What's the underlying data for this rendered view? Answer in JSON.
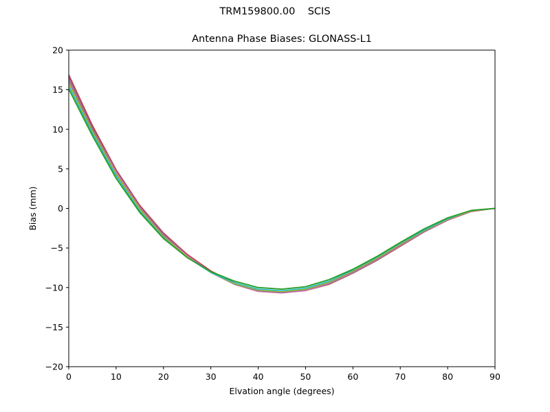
{
  "figure": {
    "suptitle": "TRM159800.00    SCIS",
    "title": "Antenna Phase Biases: GLONASS-L1"
  },
  "chart_data": {
    "type": "line",
    "title": "Antenna Phase Biases: GLONASS-L1",
    "suptitle": "TRM159800.00    SCIS",
    "xlabel": "Elvation angle (degrees)",
    "ylabel": "Bias (mm)",
    "xlim": [
      0,
      90
    ],
    "ylim": [
      -20,
      20
    ],
    "xticks": [
      0,
      10,
      20,
      30,
      40,
      50,
      60,
      70,
      80,
      90
    ],
    "yticks": [
      -20,
      -15,
      -10,
      -5,
      0,
      5,
      10,
      15,
      20
    ],
    "ytick_labels": [
      "−20",
      "−15",
      "−10",
      "−5",
      "0",
      "5",
      "10",
      "15",
      "20"
    ],
    "grid": false,
    "legend": null,
    "x": [
      0,
      5,
      10,
      15,
      20,
      25,
      30,
      35,
      40,
      45,
      50,
      55,
      60,
      65,
      70,
      75,
      80,
      85,
      90
    ],
    "series": [
      {
        "name": "line-1",
        "color": "#d62728",
        "values": [
          16.9,
          10.5,
          4.9,
          0.4,
          -3.1,
          -5.8,
          -7.9,
          -9.4,
          -10.3,
          -10.5,
          -10.2,
          -9.4,
          -8.0,
          -6.4,
          -4.6,
          -2.9,
          -1.4,
          -0.35,
          0.0
        ]
      },
      {
        "name": "line-2",
        "color": "#9467bd",
        "values": [
          16.7,
          10.3,
          4.8,
          0.3,
          -3.2,
          -5.9,
          -8.0,
          -9.5,
          -10.4,
          -10.6,
          -10.3,
          -9.5,
          -8.1,
          -6.5,
          -4.7,
          -2.95,
          -1.45,
          -0.35,
          0.0
        ]
      },
      {
        "name": "line-3",
        "color": "#8c564b",
        "values": [
          16.5,
          10.2,
          4.7,
          0.2,
          -3.3,
          -6.0,
          -8.1,
          -9.6,
          -10.5,
          -10.7,
          -10.4,
          -9.6,
          -8.2,
          -6.6,
          -4.8,
          -3.0,
          -1.5,
          -0.4,
          0.0
        ]
      },
      {
        "name": "line-4",
        "color": "#e377c2",
        "values": [
          16.3,
          10.0,
          4.6,
          0.1,
          -3.4,
          -6.0,
          -8.1,
          -9.6,
          -10.5,
          -10.7,
          -10.4,
          -9.5,
          -8.1,
          -6.5,
          -4.7,
          -2.95,
          -1.45,
          -0.35,
          0.0
        ]
      },
      {
        "name": "line-5",
        "color": "#7f7f7f",
        "values": [
          16.1,
          9.9,
          4.4,
          0.0,
          -3.5,
          -6.1,
          -8.1,
          -9.6,
          -10.4,
          -10.6,
          -10.3,
          -9.4,
          -8.0,
          -6.4,
          -4.6,
          -2.9,
          -1.4,
          -0.3,
          0.0
        ]
      },
      {
        "name": "line-6",
        "color": "#bcbd22",
        "values": [
          15.8,
          9.7,
          4.3,
          -0.1,
          -3.6,
          -6.1,
          -8.1,
          -9.5,
          -10.3,
          -10.5,
          -10.2,
          -9.3,
          -7.9,
          -6.3,
          -4.5,
          -2.8,
          -1.35,
          -0.3,
          0.0
        ]
      },
      {
        "name": "line-7",
        "color": "#17becf",
        "values": [
          15.5,
          9.5,
          4.1,
          -0.3,
          -3.7,
          -6.2,
          -8.1,
          -9.4,
          -10.2,
          -10.4,
          -10.1,
          -9.2,
          -7.8,
          -6.2,
          -4.4,
          -2.75,
          -1.3,
          -0.25,
          0.0
        ]
      },
      {
        "name": "line-8",
        "color": "#2ca02c",
        "values": [
          15.1,
          9.2,
          3.8,
          -0.5,
          -3.8,
          -6.2,
          -8.0,
          -9.2,
          -10.0,
          -10.2,
          -9.9,
          -9.0,
          -7.7,
          -6.1,
          -4.3,
          -2.6,
          -1.2,
          -0.25,
          0.0
        ]
      }
    ]
  }
}
